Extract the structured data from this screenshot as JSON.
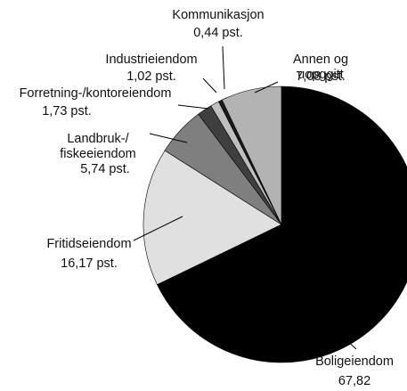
{
  "chart_data": {
    "type": "pie",
    "categories": [
      "Boligeiendom",
      "Fritidseiendom",
      "Landbruk-/\nfiskeeiendom",
      "Forretning-/kontoreiendom",
      "Industrieiendom",
      "Kommunikasjon",
      "Annen og uopggitt"
    ],
    "values": [
      67.82,
      16.17,
      5.74,
      1.73,
      1.02,
      0.44,
      7.08
    ],
    "value_labels": [
      "67,82 pst.",
      "16,17 pst.",
      "5,74 pst.",
      "1,73 pst.",
      "1,02 pst.",
      "0,44 pst.",
      "7,08 pst."
    ],
    "colors": [
      "#000000",
      "#e0e0e0",
      "#7f7f7f",
      "#3f3f3f",
      "#bfbfbf",
      "#1a1a1a",
      "#b3b3b3"
    ]
  }
}
